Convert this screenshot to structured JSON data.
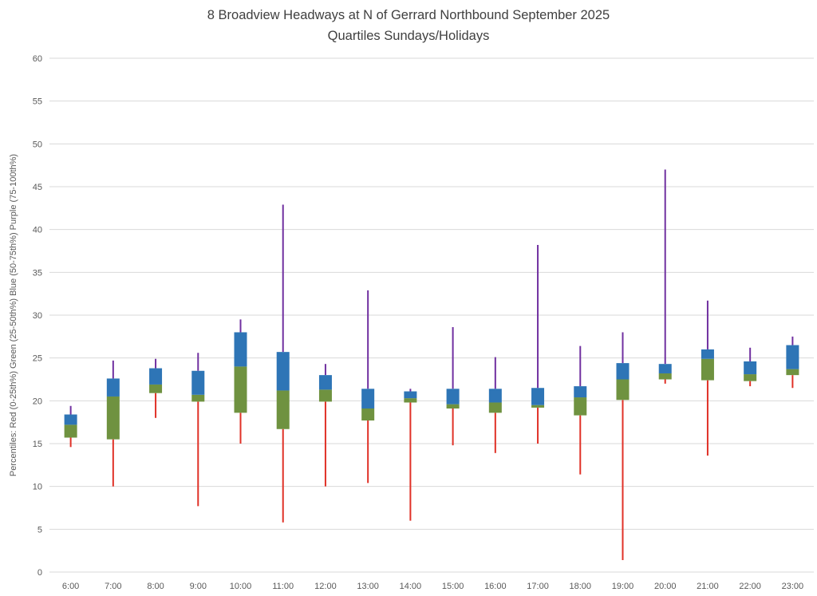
{
  "title": {
    "line1": "8 Broadview Headways at N of Gerrard Northbound September 2025",
    "line2": "Quartiles Sundays/Holidays"
  },
  "y_axis_label": "Percentiles:  Red (0-25th%)  Green (25-50th%)  Blue (50-75th%)  Purple (75-100th%)",
  "chart_data": {
    "type": "boxplot",
    "title": "8 Broadview Headways at N of Gerrard Northbound September 2025",
    "subtitle": "Quartiles Sundays/Holidays",
    "ylabel": "Percentiles:  Red (0-25th%)  Green (25-50th%)  Blue (50-75th%)  Purple (75-100th%)",
    "xlabel": "",
    "ylim": [
      0,
      60
    ],
    "ytick_step": 5,
    "grid": true,
    "legend": "encoded in y-axis label",
    "categories": [
      "6:00",
      "7:00",
      "8:00",
      "9:00",
      "10:00",
      "11:00",
      "12:00",
      "13:00",
      "14:00",
      "15:00",
      "16:00",
      "17:00",
      "18:00",
      "19:00",
      "20:00",
      "21:00",
      "22:00",
      "23:00"
    ],
    "boxes": [
      {
        "hour": "6:00",
        "min": 14.6,
        "p25": 15.7,
        "p50": 17.2,
        "p75": 18.4,
        "max": 19.4
      },
      {
        "hour": "7:00",
        "min": 10.0,
        "p25": 15.5,
        "p50": 20.5,
        "p75": 22.6,
        "max": 24.7
      },
      {
        "hour": "8:00",
        "min": 18.0,
        "p25": 20.9,
        "p50": 21.9,
        "p75": 23.8,
        "max": 24.9
      },
      {
        "hour": "9:00",
        "min": 7.7,
        "p25": 19.9,
        "p50": 20.7,
        "p75": 23.5,
        "max": 25.6
      },
      {
        "hour": "10:00",
        "min": 15.0,
        "p25": 18.6,
        "p50": 24.0,
        "p75": 28.0,
        "max": 29.5
      },
      {
        "hour": "11:00",
        "min": 5.8,
        "p25": 16.7,
        "p50": 21.2,
        "p75": 25.7,
        "max": 42.9
      },
      {
        "hour": "12:00",
        "min": 10.0,
        "p25": 19.9,
        "p50": 21.3,
        "p75": 23.0,
        "max": 24.3
      },
      {
        "hour": "13:00",
        "min": 10.4,
        "p25": 17.7,
        "p50": 19.1,
        "p75": 21.4,
        "max": 32.9
      },
      {
        "hour": "14:00",
        "min": 6.0,
        "p25": 19.8,
        "p50": 20.3,
        "p75": 21.1,
        "max": 21.4
      },
      {
        "hour": "15:00",
        "min": 14.8,
        "p25": 19.1,
        "p50": 19.6,
        "p75": 21.4,
        "max": 28.6
      },
      {
        "hour": "16:00",
        "min": 13.9,
        "p25": 18.6,
        "p50": 19.8,
        "p75": 21.4,
        "max": 25.1
      },
      {
        "hour": "17:00",
        "min": 15.0,
        "p25": 19.2,
        "p50": 19.5,
        "p75": 21.5,
        "max": 38.2
      },
      {
        "hour": "18:00",
        "min": 11.4,
        "p25": 18.3,
        "p50": 20.4,
        "p75": 21.7,
        "max": 26.4
      },
      {
        "hour": "19:00",
        "min": 1.4,
        "p25": 20.1,
        "p50": 22.5,
        "p75": 24.4,
        "max": 28.0
      },
      {
        "hour": "20:00",
        "min": 22.0,
        "p25": 22.5,
        "p50": 23.2,
        "p75": 24.3,
        "max": 47.0
      },
      {
        "hour": "21:00",
        "min": 13.6,
        "p25": 22.4,
        "p50": 24.9,
        "p75": 26.0,
        "max": 31.7
      },
      {
        "hour": "22:00",
        "min": 21.7,
        "p25": 22.3,
        "p50": 23.1,
        "p75": 24.6,
        "max": 26.2
      },
      {
        "hour": "23:00",
        "min": 21.5,
        "p25": 23.0,
        "p50": 23.7,
        "p75": 26.5,
        "max": 27.5
      }
    ],
    "colors": {
      "red": "#e03127",
      "green": "#6f9240",
      "blue": "#2e75b6",
      "purple": "#7030a0",
      "grid": "#d9d9d9",
      "axis_text": "#595959",
      "title_text": "#404040"
    }
  }
}
